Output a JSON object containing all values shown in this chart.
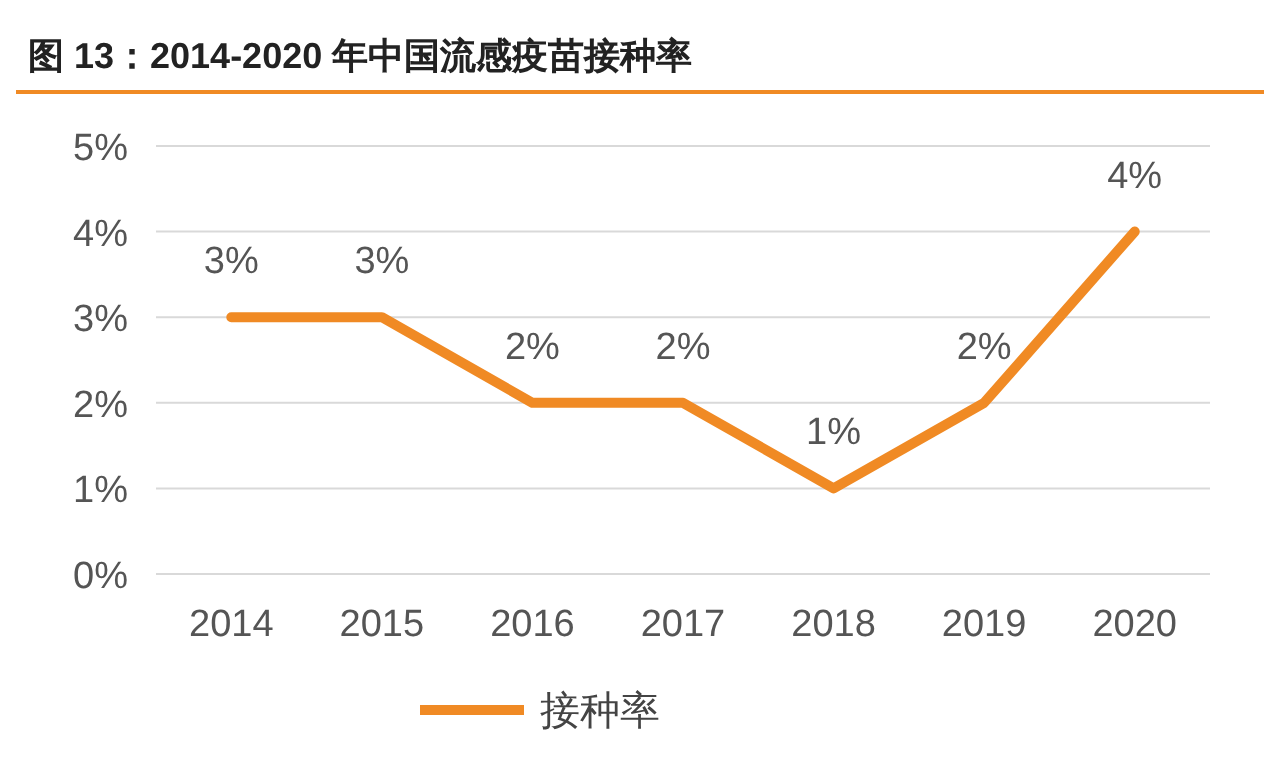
{
  "chart_data": {
    "type": "line",
    "title": "图 13：2014-2020 年中国流感疫苗接种率",
    "categories": [
      "2014",
      "2015",
      "2016",
      "2017",
      "2018",
      "2019",
      "2020"
    ],
    "series": [
      {
        "name": "接种率",
        "color": "#f08a24",
        "values": [
          3,
          3,
          2,
          2,
          1,
          2,
          4
        ],
        "value_labels": [
          "3%",
          "3%",
          "2%",
          "2%",
          "1%",
          "2%",
          "4%"
        ]
      }
    ],
    "ylim": [
      0,
      5
    ],
    "yticks": [
      {
        "value": 0,
        "label": "0%"
      },
      {
        "value": 1,
        "label": "1%"
      },
      {
        "value": 2,
        "label": "2%"
      },
      {
        "value": 3,
        "label": "3%"
      },
      {
        "value": 4,
        "label": "4%"
      },
      {
        "value": 5,
        "label": "5%"
      }
    ],
    "grid": "y",
    "legend": "bottom",
    "marker": "none",
    "line_style": "solid"
  }
}
